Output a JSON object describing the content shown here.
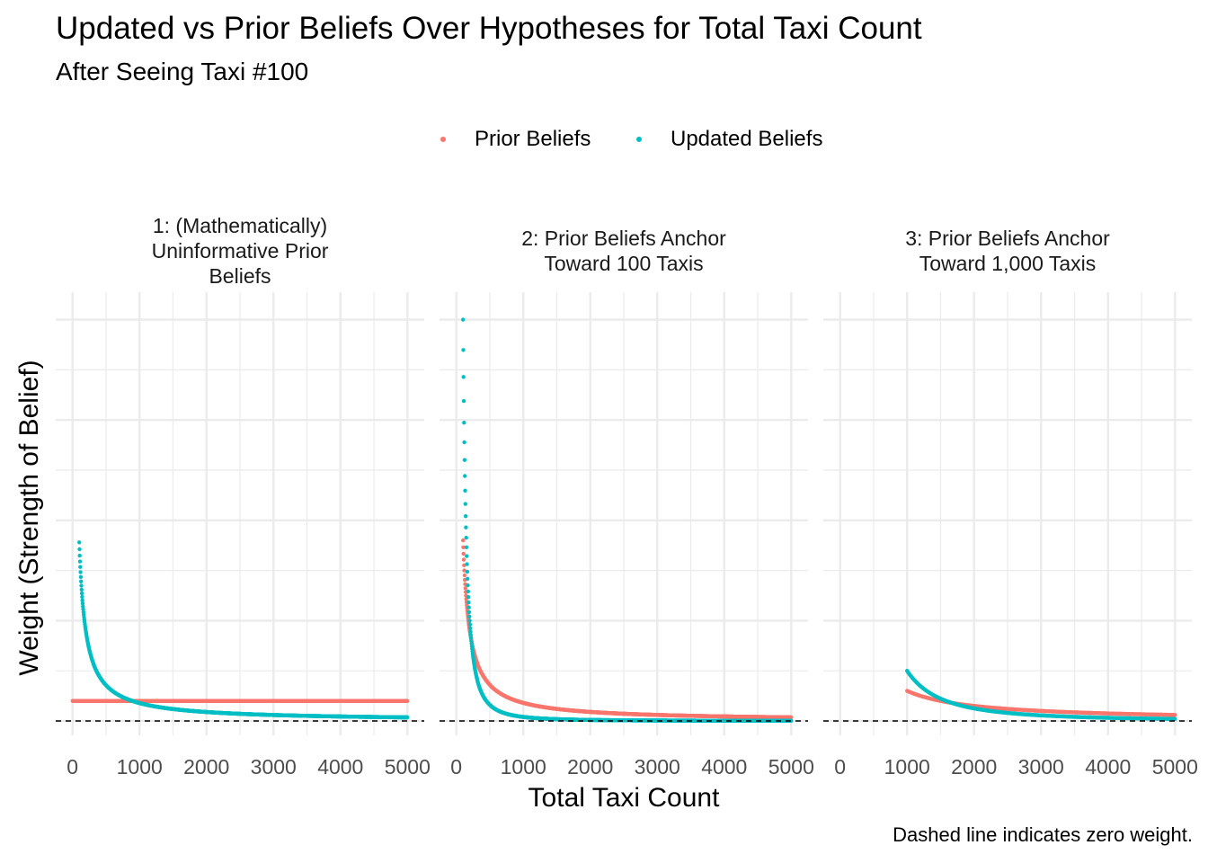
{
  "title": "Updated vs Prior Beliefs Over Hypotheses for Total Taxi Count",
  "subtitle": "After Seeing Taxi #100",
  "caption": "Dashed line indicates zero weight.",
  "colors": {
    "prior": "#F8766D",
    "updated": "#00BFC4",
    "grid": "#ebebeb",
    "zero_line": "#000000"
  },
  "legend": {
    "items": [
      {
        "label": "Prior Beliefs",
        "color": "#F8766D"
      },
      {
        "label": "Updated Beliefs",
        "color": "#00BFC4"
      }
    ],
    "position": "top"
  },
  "chart_data": {
    "type": "scatter",
    "xlabel": "Total Taxi Count",
    "ylabel": "Weight (Strength of Belief)",
    "grid": true,
    "zero_line": {
      "y": 0,
      "style": "dashed"
    },
    "y_tick_labels_shown": false,
    "panels": [
      {
        "strip": "1: (Mathematically)\nUninformative Prior\nBeliefs",
        "xlim": [
          0,
          5000
        ],
        "x_ticks": [
          0,
          1000,
          2000,
          3000,
          4000,
          5000
        ],
        "x_tick_labels": [
          "0",
          "1000",
          "2000",
          "3000",
          "4000",
          "5000"
        ],
        "series": [
          {
            "name": "Prior Beliefs",
            "x_range": [
              1,
              5000
            ],
            "model": "uniform",
            "values_sample": [
              [
                1,
                0.0002
              ],
              [
                100,
                0.0002
              ],
              [
                1000,
                0.0002
              ],
              [
                5000,
                0.0002
              ]
            ]
          },
          {
            "name": "Updated Beliefs",
            "x_range": [
              100,
              5000
            ],
            "model": "proportional to 1/x",
            "values_sample": [
              [
                100,
                0.00178
              ],
              [
                200,
                0.00089
              ],
              [
                500,
                0.00036
              ],
              [
                1000,
                0.00018
              ],
              [
                5000,
                3.6e-05
              ]
            ]
          }
        ]
      },
      {
        "strip": "2: Prior Beliefs Anchor\nToward 100 Taxis",
        "xlim": [
          0,
          5000
        ],
        "x_ticks": [
          0,
          1000,
          2000,
          3000,
          4000,
          5000
        ],
        "x_tick_labels": [
          "0",
          "1000",
          "2000",
          "3000",
          "4000",
          "5000"
        ],
        "series": [
          {
            "name": "Prior Beliefs",
            "x_range": [
              100,
              5000
            ],
            "model": "proportional to 1/x",
            "values_sample": [
              [
                100,
                0.0018
              ],
              [
                200,
                0.0009
              ],
              [
                500,
                0.00036
              ],
              [
                1000,
                0.00018
              ],
              [
                5000,
                3.6e-05
              ]
            ]
          },
          {
            "name": "Updated Beliefs",
            "x_range": [
              100,
              5000
            ],
            "model": "proportional to 1/x^2",
            "values_sample": [
              [
                100,
                0.004
              ],
              [
                200,
                0.001
              ],
              [
                500,
                0.00016
              ],
              [
                1000,
                4e-05
              ],
              [
                5000,
                1.6e-06
              ]
            ]
          }
        ]
      },
      {
        "strip": "3: Prior Beliefs Anchor\nToward 1,000 Taxis",
        "xlim": [
          0,
          5000
        ],
        "x_ticks": [
          0,
          1000,
          2000,
          3000,
          4000,
          5000
        ],
        "x_tick_labels": [
          "0",
          "1000",
          "2000",
          "3000",
          "4000",
          "5000"
        ],
        "series": [
          {
            "name": "Prior Beliefs",
            "x_range": [
              1000,
              5000
            ],
            "model": "proportional to 1/x",
            "values_sample": [
              [
                1000,
                0.0003
              ],
              [
                2000,
                0.00015
              ],
              [
                3000,
                0.0001
              ],
              [
                5000,
                6e-05
              ]
            ]
          },
          {
            "name": "Updated Beliefs",
            "x_range": [
              1000,
              5000
            ],
            "model": "proportional to 1/x^2",
            "values_sample": [
              [
                1000,
                0.0005
              ],
              [
                2000,
                0.000125
              ],
              [
                3000,
                5.6e-05
              ],
              [
                5000,
                2e-05
              ]
            ]
          }
        ]
      }
    ]
  }
}
